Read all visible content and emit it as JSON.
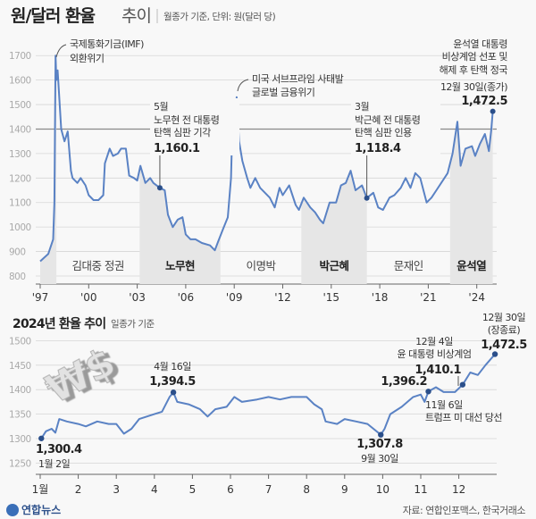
{
  "header": {
    "title_bold": "원/달러 환율",
    "title_light": "추이",
    "subtitle": "월종가 기준, 단위: 원(달러 당)"
  },
  "colors": {
    "line": "#5a82c4",
    "marker": "#2b4f8a",
    "shade": "#e6e6e6",
    "grid": "#d6d6d6",
    "ref_line": "#888888"
  },
  "chart_data": [
    {
      "type": "line",
      "title": "원/달러 환율 추이",
      "subtitle": "월종가 기준, 단위: 원(달러 당)",
      "ylim": [
        800,
        1700
      ],
      "yticks": [
        "1700",
        "1600",
        "1500",
        "1400",
        "1300",
        "1200",
        "1100",
        "1000",
        "900",
        "800"
      ],
      "xticks": [
        "'97",
        "'00",
        "'03",
        "'06",
        "'09",
        "'12",
        "'15",
        "'18",
        "'21",
        "'24"
      ],
      "grid": true,
      "x": [
        1997.0,
        1997.5,
        1997.8,
        1997.88,
        1997.95,
        1998.0,
        1998.08,
        1998.3,
        1998.5,
        1998.7,
        1998.9,
        1999.0,
        1999.3,
        1999.5,
        1999.8,
        2000.0,
        2000.3,
        2000.6,
        2000.9,
        2001.0,
        2001.3,
        2001.5,
        2001.8,
        2002.0,
        2002.3,
        2002.5,
        2002.8,
        2003.0,
        2003.2,
        2003.5,
        2003.8,
        2004.0,
        2004.4,
        2004.7,
        2004.9,
        2005.2,
        2005.5,
        2005.8,
        2006.0,
        2006.3,
        2006.6,
        2007.0,
        2007.5,
        2007.8,
        2008.0,
        2008.3,
        2008.6,
        2008.8,
        2008.9,
        2009.0,
        2009.15,
        2009.3,
        2009.5,
        2009.8,
        2010.0,
        2010.3,
        2010.6,
        2010.9,
        2011.2,
        2011.5,
        2011.8,
        2012.0,
        2012.4,
        2012.8,
        2013.0,
        2013.3,
        2013.7,
        2014.0,
        2014.3,
        2014.5,
        2014.9,
        2015.3,
        2015.6,
        2015.9,
        2016.2,
        2016.5,
        2016.9,
        2017.2,
        2017.6,
        2017.9,
        2018.2,
        2018.6,
        2018.9,
        2019.3,
        2019.6,
        2019.9,
        2020.2,
        2020.5,
        2020.9,
        2021.2,
        2021.5,
        2021.9,
        2022.2,
        2022.5,
        2022.8,
        2023.0,
        2023.3,
        2023.7,
        2023.9,
        2024.2,
        2024.5,
        2024.75,
        2024.9,
        2024.99
      ],
      "values": [
        860,
        890,
        950,
        1100,
        1700,
        1600,
        1640,
        1400,
        1350,
        1390,
        1230,
        1200,
        1180,
        1200,
        1170,
        1130,
        1110,
        1110,
        1130,
        1260,
        1320,
        1290,
        1300,
        1320,
        1320,
        1210,
        1200,
        1190,
        1250,
        1180,
        1200,
        1180,
        1160.1,
        1150,
        1050,
        1000,
        1030,
        1040,
        970,
        950,
        950,
        935,
        925,
        905,
        940,
        990,
        1040,
        1200,
        1450,
        1300,
        1530,
        1350,
        1270,
        1200,
        1160,
        1200,
        1160,
        1140,
        1120,
        1080,
        1160,
        1130,
        1170,
        1090,
        1070,
        1120,
        1080,
        1060,
        1030,
        1015,
        1100,
        1100,
        1170,
        1180,
        1230,
        1150,
        1170,
        1118.4,
        1140,
        1080,
        1070,
        1120,
        1130,
        1160,
        1200,
        1160,
        1220,
        1200,
        1100,
        1120,
        1150,
        1190,
        1220,
        1300,
        1430,
        1250,
        1320,
        1330,
        1290,
        1340,
        1380,
        1310,
        1400,
        1472.5
      ],
      "reference_line": 1400,
      "eras": [
        {
          "label": "김대중 정권",
          "start": 1998.0,
          "end": 2003.15,
          "shaded": false
        },
        {
          "label": "노무현",
          "start": 2003.15,
          "end": 2008.15,
          "shaded": true
        },
        {
          "label": "이명박",
          "start": 2008.15,
          "end": 2013.15,
          "shaded": false
        },
        {
          "label": "박근혜",
          "start": 2013.15,
          "end": 2017.2,
          "shaded": true
        },
        {
          "label": "문재인",
          "start": 2017.2,
          "end": 2022.35,
          "shaded": false
        },
        {
          "label": "윤석열",
          "start": 2022.35,
          "end": 2025.0,
          "shaded": true
        }
      ],
      "annotations": {
        "imf": [
          "국제통화기금(IMF)",
          "외환위기"
        ],
        "subprime": [
          "미국 서브프라임 사태발",
          "글로벌 금융위기"
        ],
        "roh": {
          "lines": [
            "5월",
            "노무현 전 대통령",
            "탄핵 심판 기각"
          ],
          "value": "1,160.1",
          "x": 2004.4,
          "y": 1160.1
        },
        "park": {
          "lines": [
            "3월",
            "박근혜 전 대통령",
            "탄핵 심판 인용"
          ],
          "value": "1,118.4",
          "x": 2017.2,
          "y": 1118.4
        },
        "yoon": {
          "lines": [
            "윤석열 대통령",
            "비상계엄 선포 및",
            "해제 후 탄핵 정국",
            "12월 30일(종가)"
          ],
          "value": "1,472.5",
          "x": 2024.99,
          "y": 1472.5
        }
      }
    },
    {
      "type": "line",
      "title": "2024년 환율 추이",
      "subtitle": "일종가 기준",
      "ylim": [
        1250,
        1500
      ],
      "yticks": [
        "1500",
        "1450",
        "1400",
        "1350",
        "1300",
        "1250"
      ],
      "xticks": [
        "1월",
        "2",
        "3",
        "4",
        "5",
        "6",
        "7",
        "8",
        "9",
        "10",
        "11",
        "12"
      ],
      "grid": true,
      "x": [
        1.03,
        1.15,
        1.3,
        1.4,
        1.5,
        1.7,
        2.0,
        2.2,
        2.5,
        2.8,
        3.0,
        3.2,
        3.4,
        3.6,
        3.8,
        4.0,
        4.2,
        4.4,
        4.5,
        4.6,
        4.9,
        5.2,
        5.4,
        5.6,
        5.9,
        6.1,
        6.3,
        6.7,
        7.0,
        7.3,
        7.6,
        8.0,
        8.2,
        8.4,
        8.5,
        8.8,
        9.0,
        9.3,
        9.6,
        9.95,
        10.05,
        10.2,
        10.5,
        10.8,
        11.0,
        11.1,
        11.2,
        11.4,
        11.6,
        11.9,
        12.1,
        12.3,
        12.5,
        12.7,
        12.95
      ],
      "values": [
        1300.4,
        1315,
        1320,
        1312,
        1340,
        1335,
        1330,
        1325,
        1335,
        1330,
        1330,
        1310,
        1320,
        1340,
        1345,
        1350,
        1355,
        1385,
        1394.5,
        1375,
        1370,
        1360,
        1345,
        1360,
        1365,
        1385,
        1375,
        1380,
        1385,
        1380,
        1385,
        1385,
        1370,
        1360,
        1335,
        1330,
        1340,
        1335,
        1330,
        1307.8,
        1320,
        1350,
        1365,
        1385,
        1390,
        1375,
        1396.2,
        1405,
        1395,
        1395,
        1410.1,
        1435,
        1430,
        1450,
        1472.5
      ],
      "annotations": {
        "jan": {
          "date": "1월 2일",
          "value": "1,300.4",
          "x": 1.03,
          "y": 1300.4
        },
        "apr": {
          "date": "4월 16일",
          "value": "1,394.5",
          "x": 4.5,
          "y": 1394.5
        },
        "sep": {
          "date": "9월 30일",
          "value": "1,307.8",
          "x": 9.95,
          "y": 1307.8
        },
        "nov": {
          "lines": [
            "11월 6일",
            "트럼프 미 대선 당선"
          ],
          "value": "1,396.2",
          "x": 11.2,
          "y": 1396.2
        },
        "dec4": {
          "lines": [
            "12월 4일",
            "윤 대통령 비상계엄"
          ],
          "value": "1,410.1",
          "x": 12.1,
          "y": 1410.1
        },
        "dec30": {
          "lines": [
            "12월 30일",
            "(장종료)"
          ],
          "value": "1,472.5",
          "x": 12.95,
          "y": 1472.5
        }
      }
    }
  ],
  "decoration": {
    "currency_graphic": "₩$"
  },
  "footer": {
    "logo": "연합뉴스",
    "source": "자료: 연합인포맥스, 한국거래소"
  }
}
